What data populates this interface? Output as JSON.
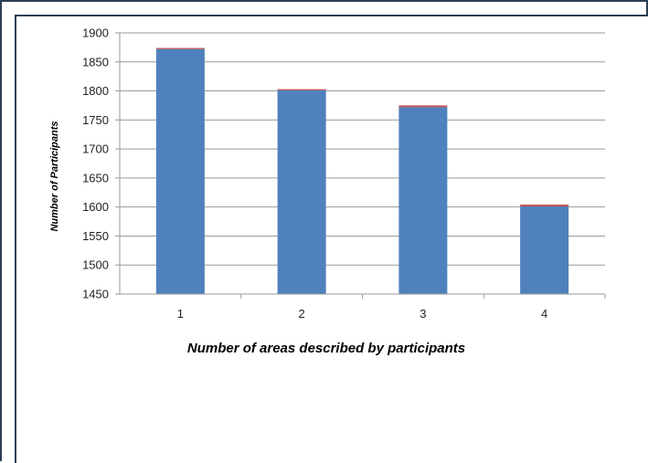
{
  "colors": {
    "bar": "#4f81bd",
    "bar_top": "#c0504d",
    "grid": "#9a9a9a",
    "axis": "#9a9a9a",
    "frame": "#2b3e55"
  },
  "chart_data": {
    "type": "bar",
    "categories": [
      "1",
      "2",
      "3",
      "4"
    ],
    "values": [
      1872,
      1801,
      1772,
      1601
    ],
    "top_segment_values": [
      2,
      2,
      3,
      3
    ],
    "title": "",
    "xlabel": "Number of areas described by participants",
    "ylabel": "Number of Participants",
    "ylim": [
      1450,
      1900
    ],
    "yticks": [
      1450,
      1500,
      1550,
      1600,
      1650,
      1700,
      1750,
      1800,
      1850,
      1900
    ],
    "grid": true,
    "legend": "none"
  }
}
